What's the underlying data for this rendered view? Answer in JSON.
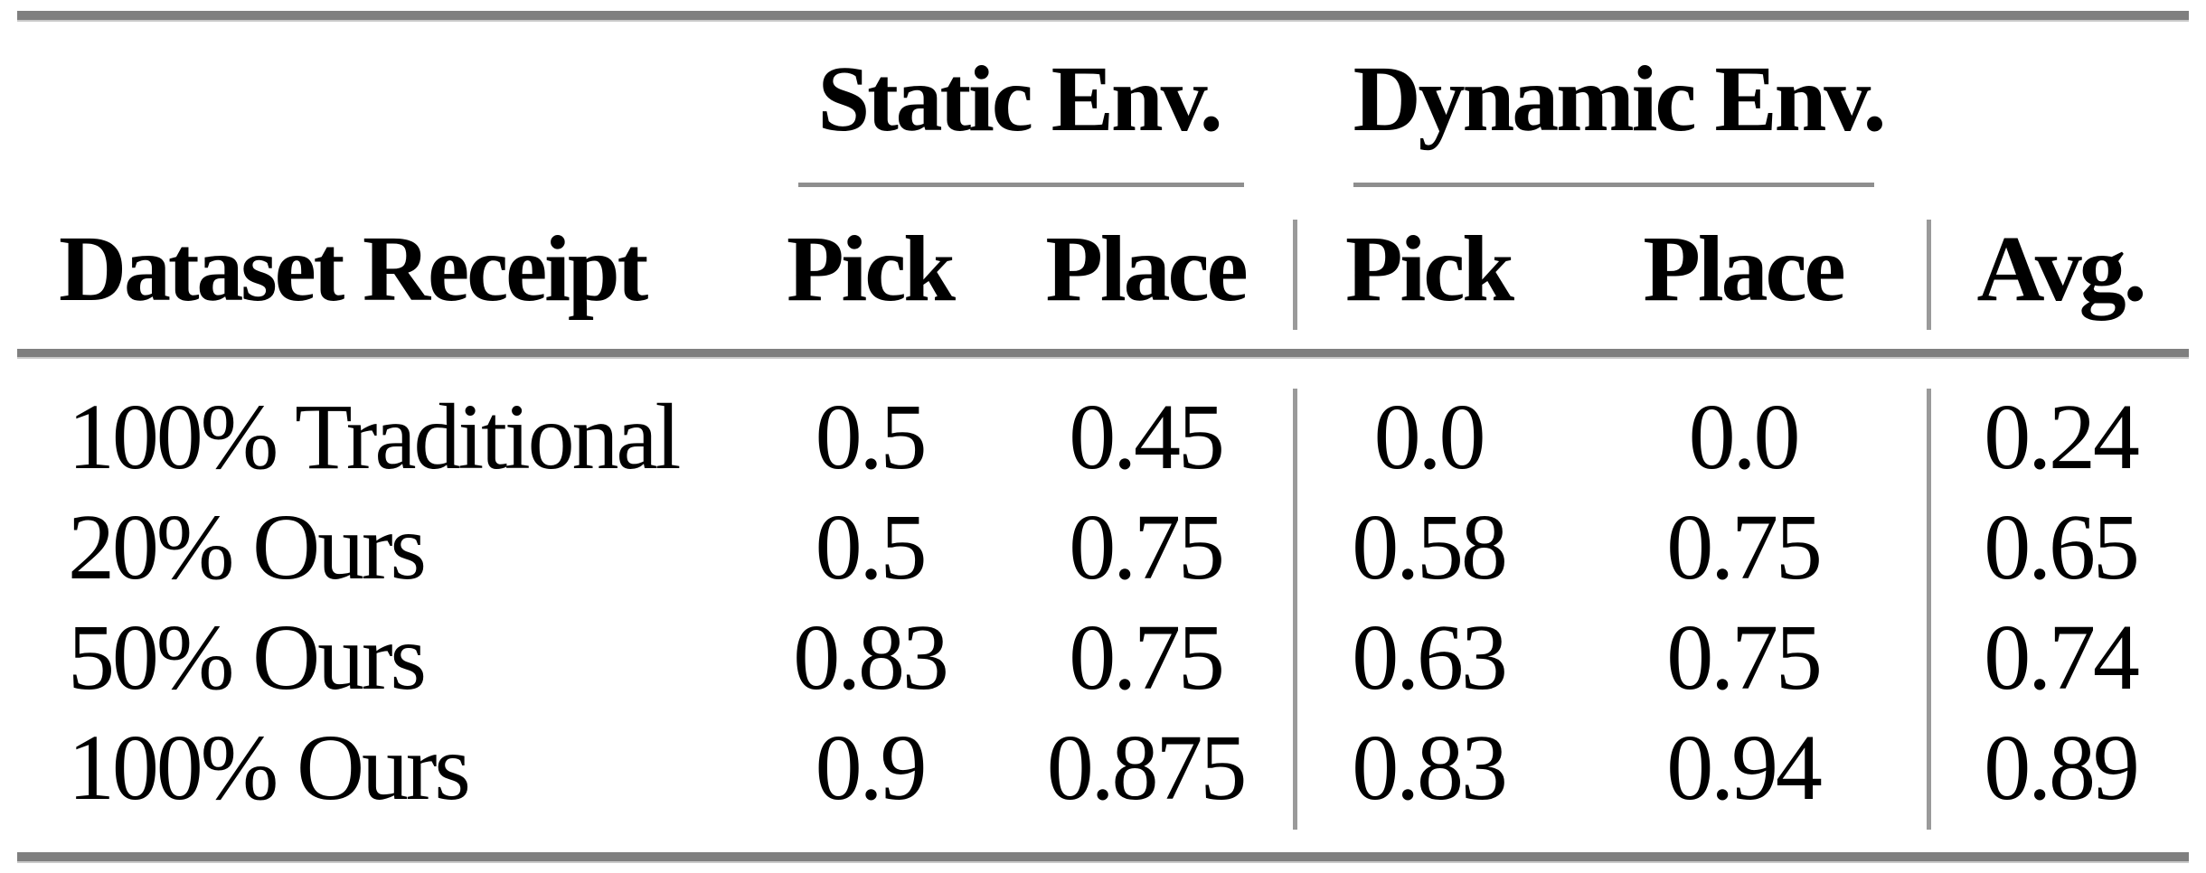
{
  "table": {
    "group_headers": {
      "static": "Static Env.",
      "dynamic": "Dynamic Env."
    },
    "columns": {
      "dataset": "Dataset Receipt",
      "static_pick": "Pick",
      "static_place": "Place",
      "dynamic_pick": "Pick",
      "dynamic_place": "Place",
      "avg": "Avg."
    },
    "rows": [
      {
        "dataset": "100% Traditional",
        "static_pick": "0.5",
        "static_place": "0.45",
        "dynamic_pick": "0.0",
        "dynamic_place": "0.0",
        "avg": "0.24"
      },
      {
        "dataset": "20% Ours",
        "static_pick": "0.5",
        "static_place": "0.75",
        "dynamic_pick": "0.58",
        "dynamic_place": "0.75",
        "avg": "0.65"
      },
      {
        "dataset": "50% Ours",
        "static_pick": "0.83",
        "static_place": "0.75",
        "dynamic_pick": "0.63",
        "dynamic_place": "0.75",
        "avg": "0.74"
      },
      {
        "dataset": "100% Ours",
        "static_pick": "0.9",
        "static_place": "0.875",
        "dynamic_pick": "0.83",
        "dynamic_place": "0.94",
        "avg": "0.89"
      }
    ],
    "colors": {
      "text": "#000000",
      "background": "#ffffff",
      "thick_rule": "#7f7f7f",
      "rule_light_edge": "#c9c9c9",
      "cmidrule": "#8e8e8e",
      "vertical_separator": "#9a9a9a"
    }
  }
}
